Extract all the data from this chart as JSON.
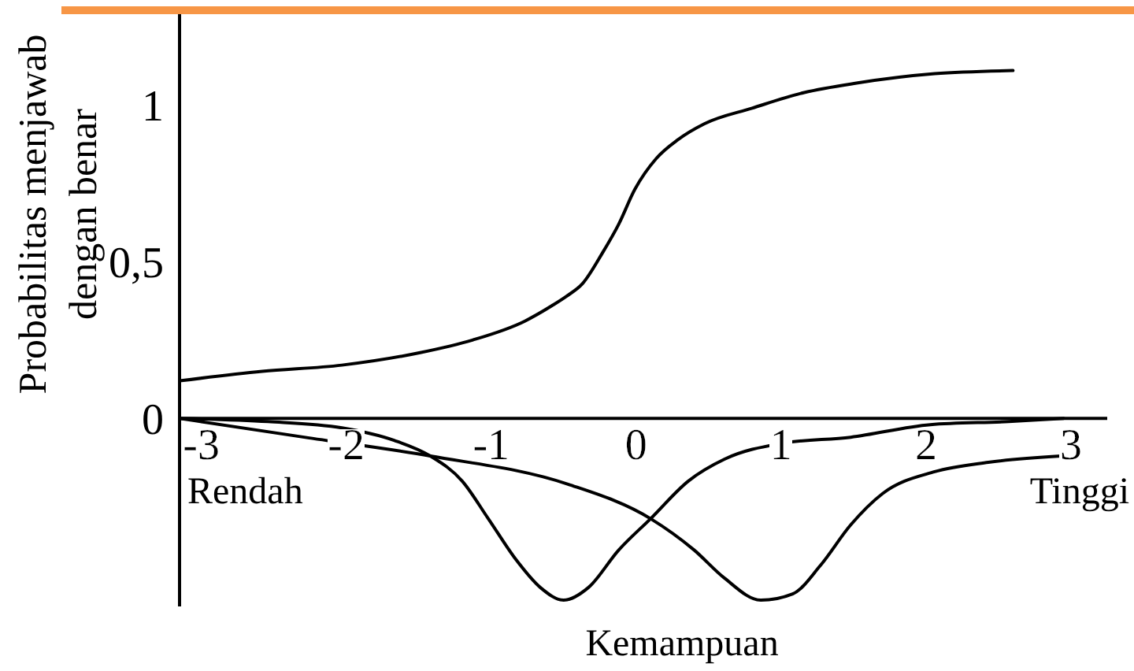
{
  "chart_data": {
    "type": "line",
    "xlabel": "Kemampuan",
    "ylabel": "Probabilitas menjawab\ndengan benar",
    "annotations": [
      "Rendah",
      "Tinggi"
    ],
    "xlim": [
      -3.15,
      3.25
    ],
    "ylim": [
      -0.6,
      1.29
    ],
    "xticks": [
      -3,
      -2,
      -1,
      0,
      1,
      2,
      3
    ],
    "yticks": [
      0,
      {
        "value": 0.5,
        "label": "0,5"
      },
      1
    ],
    "marker": "none",
    "line_style": "solid",
    "series": [
      {
        "color": "#000000",
        "x": [
          -3.15,
          -2.58,
          -2.03,
          -1.49,
          -1.13,
          -0.77,
          -0.58,
          -0.48,
          -0.37,
          -0.23,
          -0.12,
          -0.01,
          0.14,
          0.29,
          0.47,
          0.8,
          1.16,
          1.52,
          2.06,
          2.6
        ],
        "values": [
          0.12,
          0.15,
          0.17,
          0.21,
          0.25,
          0.31,
          0.36,
          0.39,
          0.43,
          0.53,
          0.62,
          0.73,
          0.83,
          0.89,
          0.94,
          0.99,
          1.04,
          1.07,
          1.1,
          1.11
        ]
      },
      {
        "color": "#000000",
        "x": [
          -3.15,
          -2.54,
          -2.03,
          -1.67,
          -1.42,
          -1.2,
          -1.02,
          -0.83,
          -0.66,
          -0.5,
          -0.33,
          -0.12,
          0.1,
          0.36,
          0.61,
          1.0,
          1.48,
          2.03,
          2.57,
          2.95
        ],
        "values": [
          0,
          -0.01,
          -0.03,
          -0.07,
          -0.12,
          -0.2,
          -0.32,
          -0.45,
          -0.54,
          -0.58,
          -0.54,
          -0.42,
          -0.32,
          -0.2,
          -0.13,
          -0.08,
          -0.06,
          -0.02,
          -0.01,
          0
        ]
      },
      {
        "color": "#000000",
        "x": [
          -3.15,
          -2.29,
          -1.42,
          -0.47,
          0.1,
          0.4,
          0.61,
          0.86,
          1.08,
          1.27,
          1.48,
          1.7,
          2.06,
          2.43,
          2.93
        ],
        "values": [
          0,
          -0.06,
          -0.12,
          -0.21,
          -0.32,
          -0.42,
          -0.51,
          -0.58,
          -0.56,
          -0.47,
          -0.34,
          -0.24,
          -0.17,
          -0.14,
          -0.12
        ]
      }
    ]
  }
}
